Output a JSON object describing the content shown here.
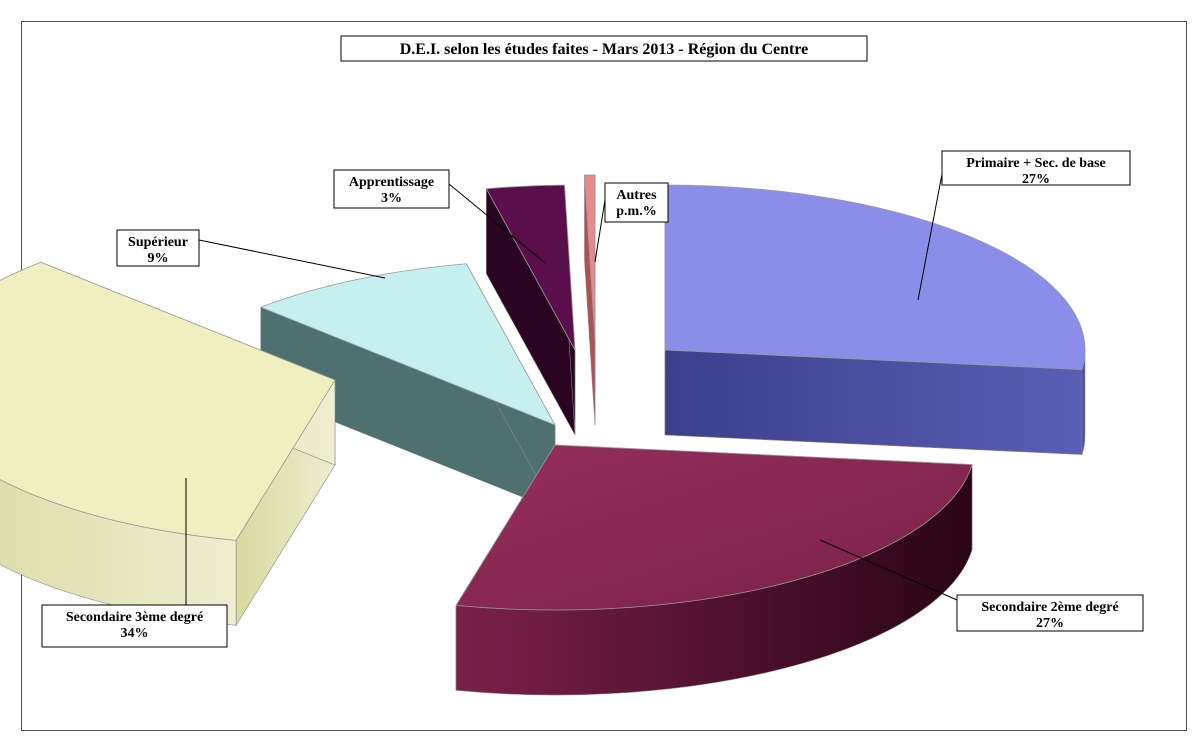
{
  "chart_data": {
    "type": "pie",
    "title": "D.E.I. selon les études faites - Mars 2013 - Région du Centre",
    "slices": [
      {
        "label": "Primaire + Sec. de base",
        "value_label": "27%",
        "value": 27,
        "color": "#8b8ee8"
      },
      {
        "label": "Secondaire 2ème degré",
        "value_label": "27%",
        "value": 27,
        "color": "#8a2a55"
      },
      {
        "label": "Secondaire 3ème degré",
        "value_label": "34%",
        "value": 34,
        "color": "#efefc0"
      },
      {
        "label": "Supérieur",
        "value_label": "9%",
        "value": 9,
        "color": "#c6f0f0"
      },
      {
        "label": "Apprentissage",
        "value_label": "3%",
        "value": 3,
        "color": "#5a0f4a"
      },
      {
        "label": "Autres",
        "value_label": "p.m.%",
        "value": 0.4,
        "color": "#e88a8a"
      }
    ],
    "legend": "none",
    "data_labels": "outside with leader lines"
  }
}
